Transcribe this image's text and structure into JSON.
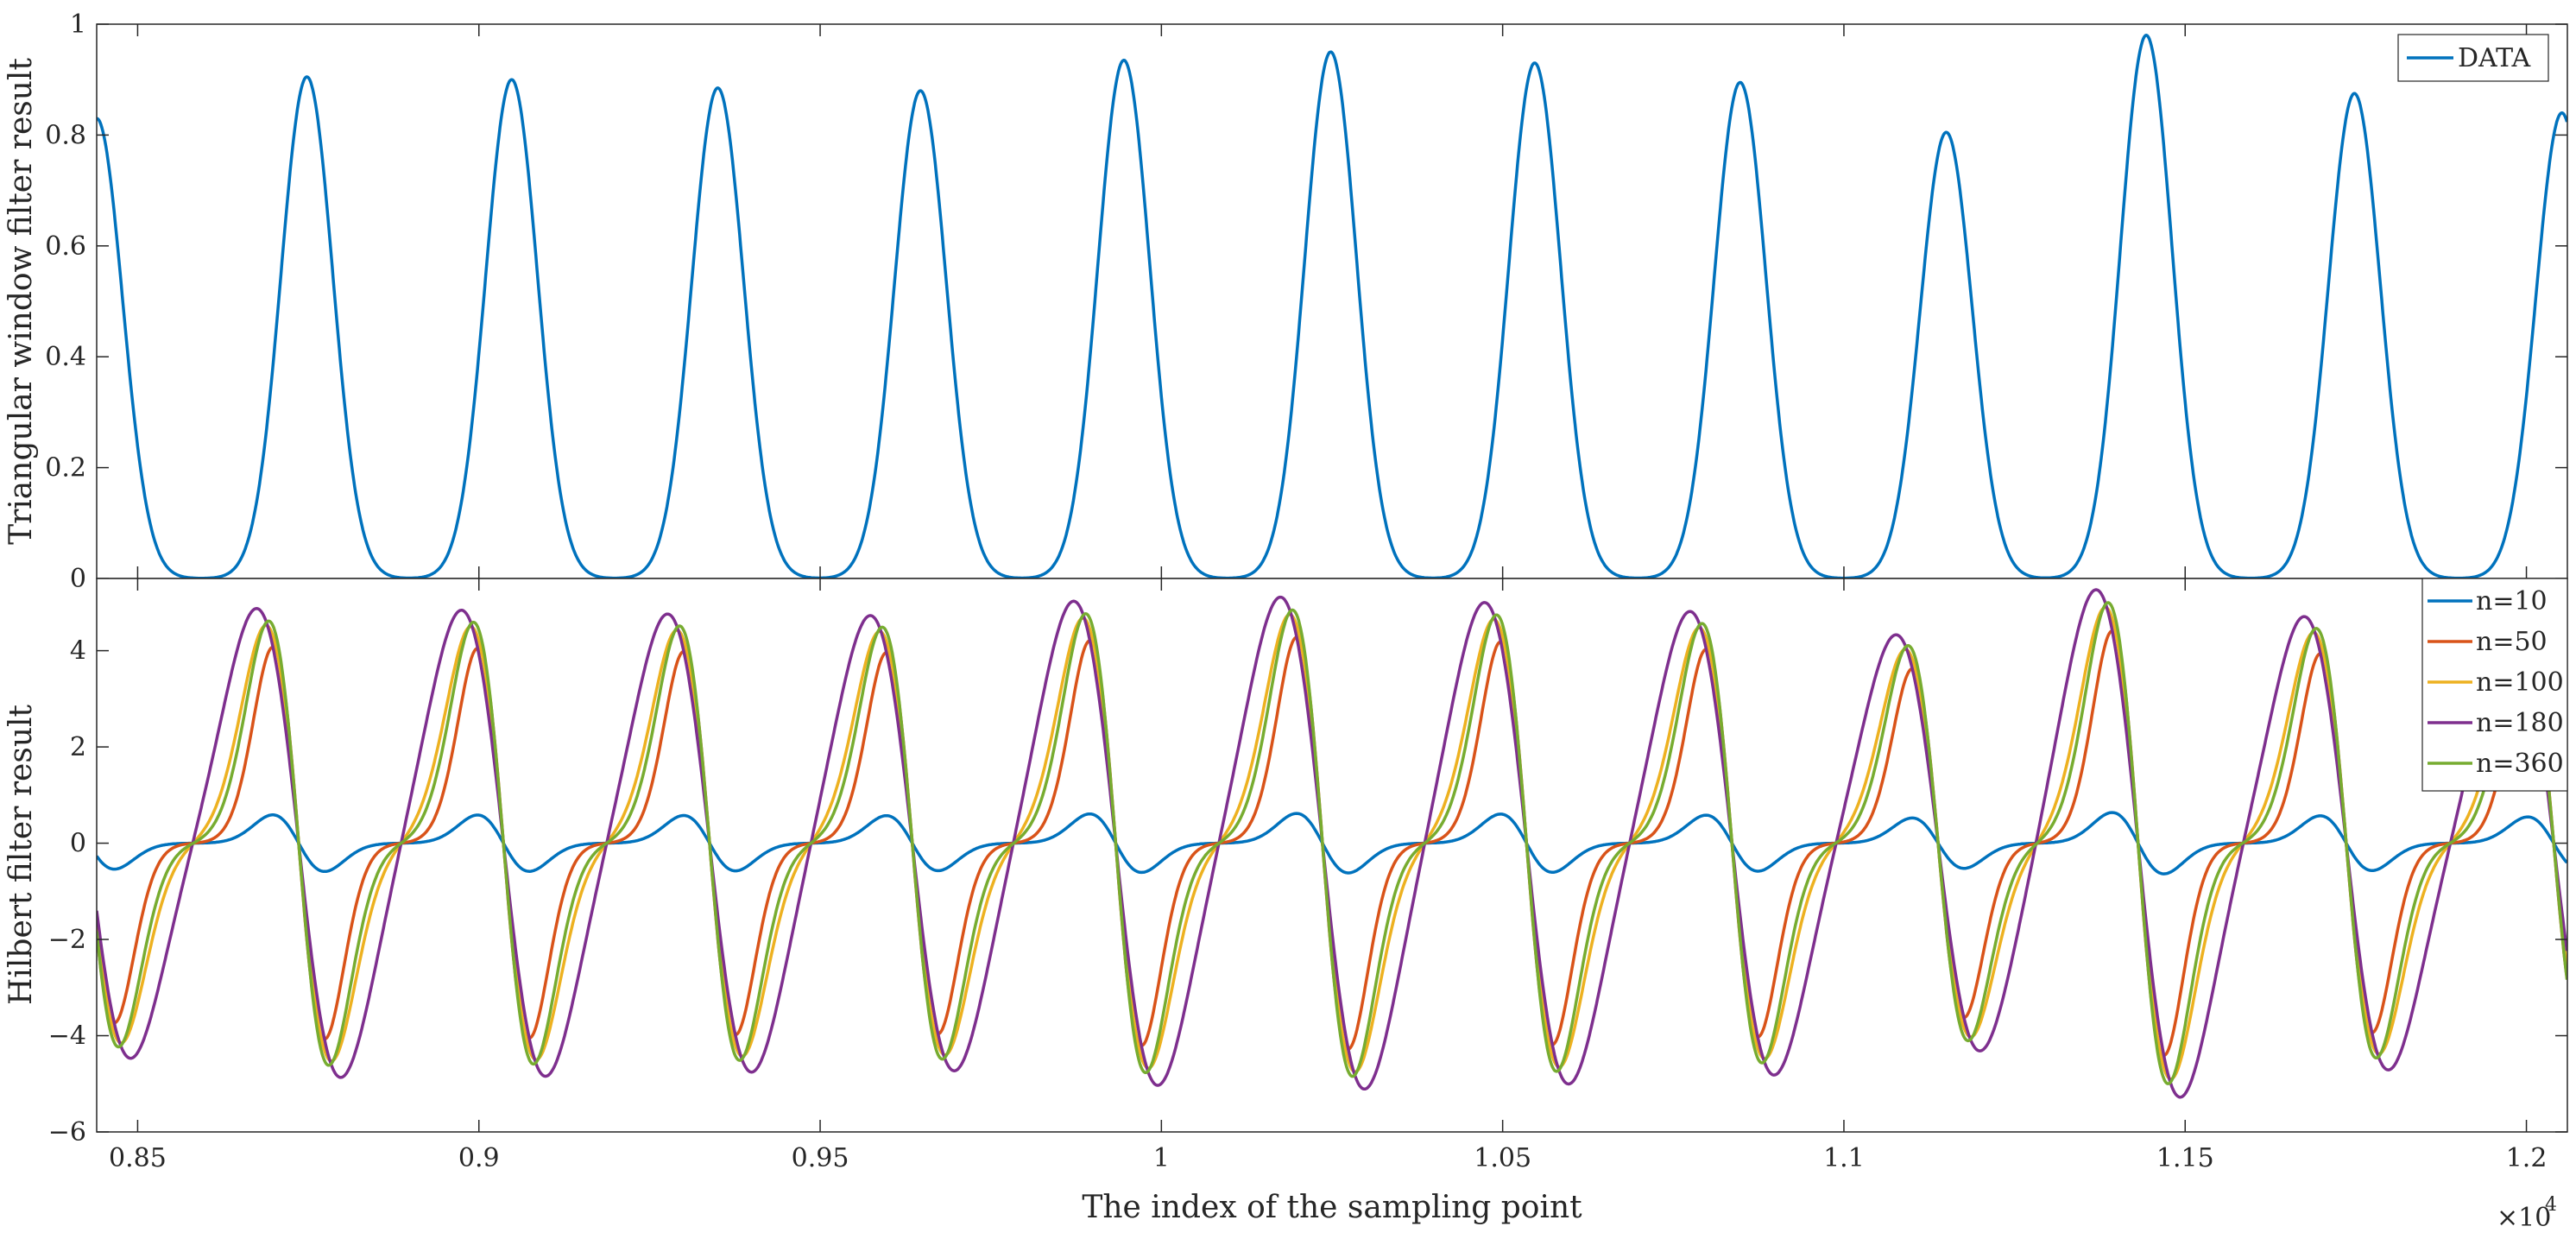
{
  "chart_data": [
    {
      "type": "line",
      "ylabel": "Triangular window filter result",
      "xlim": [
        8440,
        12060
      ],
      "ylim": [
        0,
        1
      ],
      "yticks": [
        0,
        0.2,
        0.4,
        0.6,
        0.8,
        1
      ],
      "ytick_labels": [
        "0",
        "0.2",
        "0.4",
        "0.6",
        "0.8",
        "1"
      ],
      "legend": {
        "position": "top-right",
        "entries": [
          "DATA"
        ]
      },
      "series": [
        {
          "name": "DATA",
          "color": "#0072BD",
          "shape": "gaussian-pulses",
          "pulse_width": 38,
          "pulses": [
            {
              "x": 8440,
              "h": 0.83
            },
            {
              "x": 8748,
              "h": 0.905
            },
            {
              "x": 9048,
              "h": 0.9
            },
            {
              "x": 9350,
              "h": 0.885
            },
            {
              "x": 9647,
              "h": 0.88
            },
            {
              "x": 9945,
              "h": 0.935
            },
            {
              "x": 10248,
              "h": 0.95
            },
            {
              "x": 10547,
              "h": 0.93
            },
            {
              "x": 10848,
              "h": 0.895
            },
            {
              "x": 11150,
              "h": 0.805
            },
            {
              "x": 11443,
              "h": 0.98
            },
            {
              "x": 11748,
              "h": 0.875
            },
            {
              "x": 12052,
              "h": 0.84
            }
          ]
        }
      ]
    },
    {
      "type": "line",
      "xlabel": "The index of the sampling point",
      "ylabel": "Hilbert filter result",
      "xlim": [
        8440,
        12060
      ],
      "ylim": [
        -6,
        5.5
      ],
      "xticks": [
        8500,
        9000,
        9500,
        10000,
        10500,
        11000,
        11500,
        12000
      ],
      "xtick_labels": [
        "0.85",
        "0.9",
        "0.95",
        "1",
        "1.05",
        "1.1",
        "1.15",
        "1.2"
      ],
      "x_multiplier": "×10",
      "x_multiplier_exp": "4",
      "yticks": [
        -6,
        -4,
        -2,
        0,
        2,
        4
      ],
      "ytick_labels": [
        "−6",
        "−4",
        "−2",
        "0",
        "2",
        "4"
      ],
      "legend": {
        "position": "top-right",
        "entries": [
          "n=10",
          "n=50",
          "n=100",
          "n=180",
          "n=360"
        ]
      },
      "shape": "hilbert-transform-of-pulses",
      "series": [
        {
          "name": "n=10",
          "color": "#0072BD",
          "amplitude": 0.65,
          "pulse_width": 38
        },
        {
          "name": "n=50",
          "color": "#D95319",
          "amplitude": 4.5,
          "pulse_width": 38
        },
        {
          "name": "n=100",
          "color": "#EDB120",
          "amplitude": 5.0,
          "pulse_width": 48
        },
        {
          "name": "n=180",
          "color": "#7E2F8E",
          "amplitude": 5.4,
          "pulse_width": 62
        },
        {
          "name": "n=360",
          "color": "#77AC30",
          "amplitude": 5.1,
          "pulse_width": 44
        }
      ]
    }
  ]
}
